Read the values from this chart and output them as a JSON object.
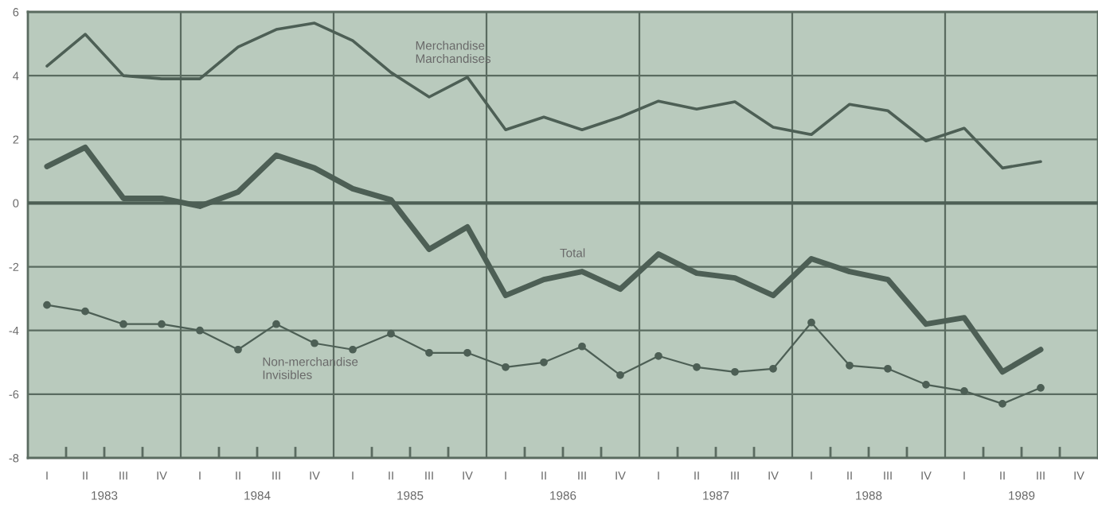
{
  "chart_data": {
    "type": "line",
    "categories": [
      "I",
      "II",
      "III",
      "IV",
      "I",
      "II",
      "III",
      "IV",
      "I",
      "II",
      "III",
      "IV",
      "I",
      "II",
      "III",
      "IV",
      "I",
      "II",
      "III",
      "IV",
      "I",
      "II",
      "III",
      "IV",
      "I",
      "II",
      "III",
      "IV"
    ],
    "series": [
      {
        "name": "Merchandise\nMarchandises",
        "color": "#4d5f55",
        "marker": "none",
        "values": [
          4.3,
          5.3,
          4.0,
          3.9,
          3.9,
          4.9,
          5.45,
          5.65,
          5.1,
          4.1,
          3.33,
          3.95,
          2.3,
          2.7,
          2.3,
          2.7,
          3.2,
          2.95,
          3.18,
          2.38,
          2.15,
          3.1,
          2.9,
          1.95,
          2.35,
          1.1,
          1.3,
          null
        ]
      },
      {
        "name": "Total",
        "color": "#4d5f55",
        "marker": "none",
        "values": [
          1.15,
          1.75,
          0.15,
          0.15,
          -0.1,
          0.35,
          1.5,
          1.1,
          0.45,
          0.1,
          -1.45,
          -0.75,
          -2.9,
          -2.4,
          -2.15,
          -2.7,
          -1.6,
          -2.2,
          -2.35,
          -2.9,
          -1.75,
          -2.15,
          -2.4,
          -3.8,
          -3.6,
          -5.3,
          -4.6,
          null
        ]
      },
      {
        "name": "Non-merchandise\nInvisibles",
        "color": "#4d5f55",
        "marker": "circle",
        "values": [
          -3.2,
          -3.4,
          -3.8,
          -3.8,
          -4.0,
          -4.6,
          -3.8,
          -4.4,
          -4.6,
          -4.1,
          -4.7,
          -4.7,
          -5.15,
          -5.0,
          -4.5,
          -5.4,
          -4.8,
          -5.15,
          -5.3,
          -5.2,
          -3.75,
          -5.1,
          -5.2,
          -5.7,
          -5.9,
          -6.3,
          -5.8,
          null
        ]
      }
    ],
    "ylim": [
      -8,
      6
    ],
    "yticks": [
      -8,
      -6,
      -4,
      -2,
      0,
      2,
      4,
      6
    ],
    "annotations": [
      "1983",
      "1984",
      "1985",
      "1986",
      "1987",
      "1988",
      "1989"
    ],
    "ref_lines": [
      {
        "axis": "y",
        "value": 0,
        "color": "#4d5f55"
      }
    ],
    "grid": "y",
    "legend": false,
    "line_style": "solid"
  }
}
